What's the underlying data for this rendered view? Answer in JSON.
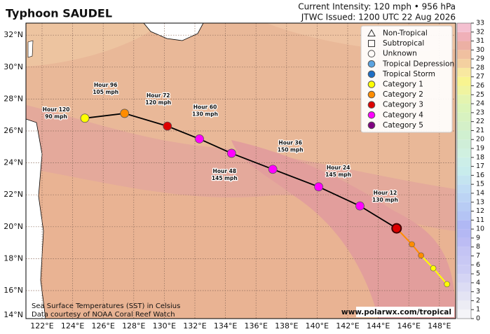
{
  "header": {
    "title": "Typhoon SAUDEL",
    "intensity": "Current Intensity: 120 mph • 956 hPa",
    "issued": "JTWC Issued: 1200 UTC 22 Aug 2026"
  },
  "map": {
    "lat_ticks": [
      {
        "value": 14,
        "label": "14°N"
      },
      {
        "value": 16,
        "label": "16°N"
      },
      {
        "value": 18,
        "label": "18°N"
      },
      {
        "value": 20,
        "label": "20°N"
      },
      {
        "value": 22,
        "label": "22°N"
      },
      {
        "value": 24,
        "label": "24°N"
      },
      {
        "value": 26,
        "label": "26°N"
      },
      {
        "value": 28,
        "label": "28°N"
      },
      {
        "value": 30,
        "label": "30°N"
      },
      {
        "value": 32,
        "label": "32°N"
      }
    ],
    "lon_ticks": [
      {
        "value": 122,
        "label": "122°E"
      },
      {
        "value": 124,
        "label": "124°E"
      },
      {
        "value": 126,
        "label": "126°E"
      },
      {
        "value": 128,
        "label": "128°E"
      },
      {
        "value": 130,
        "label": "130°E"
      },
      {
        "value": 132,
        "label": "132°E"
      },
      {
        "value": 134,
        "label": "134°E"
      },
      {
        "value": 136,
        "label": "136°E"
      },
      {
        "value": 138,
        "label": "138°E"
      },
      {
        "value": 140,
        "label": "140°E"
      },
      {
        "value": 142,
        "label": "142°E"
      },
      {
        "value": 144,
        "label": "144°E"
      },
      {
        "value": 146,
        "label": "146°E"
      },
      {
        "value": 148,
        "label": "148°E"
      }
    ],
    "legend": [
      {
        "name": "Non-Tropical",
        "symbol": "triangle"
      },
      {
        "name": "Subtropical",
        "symbol": "square"
      },
      {
        "name": "Unknown",
        "symbol": "circle"
      },
      {
        "name": "Tropical Depression",
        "symbol": "circle",
        "color": "#5ba3e0"
      },
      {
        "name": "Tropical Storm",
        "symbol": "circle",
        "color": "#1f6fc4"
      },
      {
        "name": "Category 1",
        "symbol": "circle",
        "color": "#ffff00"
      },
      {
        "name": "Category 2",
        "symbol": "circle",
        "color": "#ff8c00"
      },
      {
        "name": "Category 3",
        "symbol": "circle",
        "color": "#dd0000"
      },
      {
        "name": "Category 4",
        "symbol": "circle",
        "color": "#ff00ff"
      },
      {
        "name": "Category 5",
        "symbol": "circle",
        "color": "#800080"
      }
    ],
    "forecast": [
      {
        "hour": "Hour 120",
        "wind": "90 mph",
        "lon": 124.8,
        "lat": 26.8,
        "color": "#ffff00"
      },
      {
        "hour": "Hour 96",
        "wind": "105 mph",
        "lon": 127.4,
        "lat": 27.1,
        "color": "#ff8c00"
      },
      {
        "hour": "Hour 72",
        "wind": "120 mph",
        "lon": 130.2,
        "lat": 26.3,
        "color": "#dd0000"
      },
      {
        "hour": "Hour 60",
        "wind": "130 mph",
        "lon": 132.3,
        "lat": 25.5,
        "color": "#ff00ff"
      },
      {
        "hour": "Hour 48",
        "wind": "145 mph",
        "lon": 134.4,
        "lat": 24.6,
        "color": "#ff00ff"
      },
      {
        "hour": "Hour 36",
        "wind": "150 mph",
        "lon": 137.1,
        "lat": 23.6,
        "color": "#ff00ff"
      },
      {
        "hour": "Hour 24",
        "wind": "145 mph",
        "lon": 140.1,
        "lat": 22.5,
        "color": "#ff00ff"
      },
      {
        "hour": "Hour 12",
        "wind": "130 mph",
        "lon": 142.8,
        "lat": 21.3,
        "color": "#ff00ff"
      }
    ],
    "current": {
      "lon": 145.2,
      "lat": 19.9,
      "color": "#dd0000"
    },
    "past": [
      {
        "lon": 146.2,
        "lat": 18.9,
        "color": "#ff8c00"
      },
      {
        "lon": 146.8,
        "lat": 18.2,
        "color": "#ff8c00"
      },
      {
        "lon": 147.6,
        "lat": 17.4,
        "color": "#ffff00"
      },
      {
        "lon": 148.5,
        "lat": 16.4,
        "color": "#ffff00"
      }
    ]
  },
  "colorbar": {
    "ticks": [
      0,
      1,
      2,
      3,
      4,
      5,
      6,
      7,
      8,
      9,
      10,
      11,
      12,
      13,
      14,
      15,
      16,
      17,
      18,
      19,
      20,
      21,
      22,
      23,
      24,
      25,
      26,
      27,
      28,
      29,
      30,
      31,
      32,
      33
    ],
    "colors": [
      "#f4f4f8",
      "#ececf4",
      "#e4e4f4",
      "#dcdcf4",
      "#d4d4f4",
      "#ccccf4",
      "#c8c8f4",
      "#c4c4f4",
      "#bcbcf4",
      "#b4b8f4",
      "#b0b8f4",
      "#b4c4f4",
      "#b8ccf4",
      "#bcd4f4",
      "#c0dcf4",
      "#c4e4f0",
      "#c8ecec",
      "#cceee8",
      "#d0f0e0",
      "#cfeed8",
      "#d0f0d0",
      "#d4f0c8",
      "#d8f2c0",
      "#dcf4b8",
      "#e4f4b0",
      "#f0f4a0",
      "#f8f490",
      "#f8e8a0",
      "#f4d0a0",
      "#f0c0a0",
      "#ecb0a4",
      "#f0b0b8",
      "#f4c0d0"
    ]
  },
  "footer": {
    "sst": "Sea Surface Temperatures (SST) in Celsius",
    "credit": "Data courtesy of NOAA Coral Reef Watch",
    "source": "www.polarwx.com/tropical"
  }
}
